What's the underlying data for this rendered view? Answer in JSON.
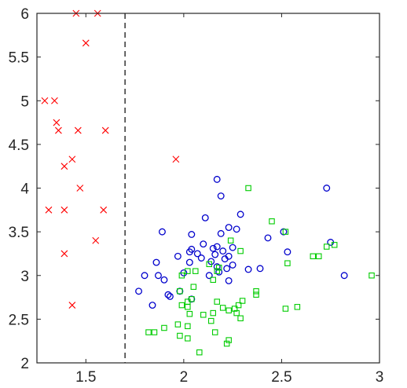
{
  "chart_data": {
    "type": "scatter",
    "xlim": [
      1.25,
      3.0
    ],
    "ylim": [
      2.0,
      6.0
    ],
    "xticks": [
      1.5,
      2,
      2.5,
      3
    ],
    "xtick_labels": [
      "1.5",
      "2",
      "2.5",
      "3"
    ],
    "yticks": [
      2,
      2.5,
      3,
      3.5,
      4,
      4.5,
      5,
      5.5,
      6
    ],
    "ytick_labels": [
      "2",
      "2.5",
      "3",
      "3.5",
      "4",
      "4.5",
      "5",
      "5.5",
      "6"
    ],
    "grid": false,
    "box": true,
    "reference_line": {
      "orientation": "vertical",
      "x": 1.7,
      "style": "dashed",
      "color": "#000000"
    },
    "series": [
      {
        "marker": "x",
        "color": "#ff0000",
        "points": [
          [
            1.45,
            6.0
          ],
          [
            1.56,
            6.0
          ],
          [
            1.5,
            5.66
          ],
          [
            1.29,
            5.0
          ],
          [
            1.34,
            5.0
          ],
          [
            1.35,
            4.75
          ],
          [
            1.36,
            4.66
          ],
          [
            1.46,
            4.66
          ],
          [
            1.6,
            4.66
          ],
          [
            1.43,
            4.33
          ],
          [
            1.39,
            4.25
          ],
          [
            1.96,
            4.33
          ],
          [
            1.47,
            4.0
          ],
          [
            1.31,
            3.75
          ],
          [
            1.39,
            3.75
          ],
          [
            1.59,
            3.75
          ],
          [
            1.55,
            3.4
          ],
          [
            1.39,
            3.25
          ],
          [
            1.43,
            2.66
          ]
        ]
      },
      {
        "marker": "o",
        "color": "#0000cc",
        "points": [
          [
            2.17,
            4.1
          ],
          [
            2.73,
            4.0
          ],
          [
            2.19,
            3.91
          ],
          [
            2.29,
            3.7
          ],
          [
            2.11,
            3.66
          ],
          [
            2.23,
            3.55
          ],
          [
            2.27,
            3.53
          ],
          [
            1.89,
            3.5
          ],
          [
            2.04,
            3.47
          ],
          [
            2.19,
            3.48
          ],
          [
            2.51,
            3.5
          ],
          [
            2.43,
            3.43
          ],
          [
            2.1,
            3.36
          ],
          [
            2.75,
            3.38
          ],
          [
            2.17,
            3.33
          ],
          [
            2.25,
            3.32
          ],
          [
            2.04,
            3.3
          ],
          [
            2.15,
            3.31
          ],
          [
            2.2,
            3.28
          ],
          [
            2.03,
            3.27
          ],
          [
            2.53,
            3.27
          ],
          [
            2.07,
            3.25
          ],
          [
            1.97,
            3.22
          ],
          [
            2.16,
            3.24
          ],
          [
            2.23,
            3.22
          ],
          [
            2.09,
            3.2
          ],
          [
            2.21,
            3.19
          ],
          [
            2.14,
            3.16
          ],
          [
            1.86,
            3.15
          ],
          [
            2.03,
            3.15
          ],
          [
            2.25,
            3.12
          ],
          [
            2.17,
            3.1
          ],
          [
            2.22,
            3.08
          ],
          [
            2.33,
            3.07
          ],
          [
            2.39,
            3.08
          ],
          [
            2.18,
            3.04
          ],
          [
            2.0,
            3.03
          ],
          [
            1.8,
            3.0
          ],
          [
            1.87,
            3.0
          ],
          [
            2.13,
            3.0
          ],
          [
            2.82,
            3.0
          ],
          [
            1.9,
            2.95
          ],
          [
            2.23,
            2.94
          ],
          [
            1.98,
            2.82
          ],
          [
            1.77,
            2.82
          ],
          [
            1.92,
            2.78
          ],
          [
            1.93,
            2.76
          ],
          [
            2.04,
            2.73
          ],
          [
            1.84,
            2.66
          ]
        ]
      },
      {
        "marker": "s",
        "color": "#00cc00",
        "points": [
          [
            2.33,
            4.0
          ],
          [
            2.45,
            3.62
          ],
          [
            2.52,
            3.5
          ],
          [
            2.24,
            3.4
          ],
          [
            2.77,
            3.35
          ],
          [
            2.73,
            3.33
          ],
          [
            2.29,
            3.28
          ],
          [
            2.66,
            3.22
          ],
          [
            2.69,
            3.22
          ],
          [
            2.13,
            3.13
          ],
          [
            2.53,
            3.14
          ],
          [
            2.02,
            3.05
          ],
          [
            2.06,
            3.05
          ],
          [
            2.17,
            3.05
          ],
          [
            2.18,
            3.09
          ],
          [
            1.99,
            3.0
          ],
          [
            2.96,
            3.0
          ],
          [
            2.15,
            2.95
          ],
          [
            2.05,
            2.87
          ],
          [
            1.98,
            2.82
          ],
          [
            2.37,
            2.82
          ],
          [
            2.37,
            2.78
          ],
          [
            2.3,
            2.71
          ],
          [
            2.02,
            2.7
          ],
          [
            2.04,
            2.73
          ],
          [
            2.17,
            2.7
          ],
          [
            2.2,
            2.63
          ],
          [
            2.02,
            2.64
          ],
          [
            1.99,
            2.66
          ],
          [
            2.28,
            2.66
          ],
          [
            2.52,
            2.62
          ],
          [
            2.58,
            2.64
          ],
          [
            2.23,
            2.6
          ],
          [
            2.26,
            2.62
          ],
          [
            2.27,
            2.57
          ],
          [
            2.15,
            2.57
          ],
          [
            2.1,
            2.55
          ],
          [
            2.03,
            2.56
          ],
          [
            2.29,
            2.51
          ],
          [
            2.14,
            2.48
          ],
          [
            1.9,
            2.4
          ],
          [
            1.97,
            2.44
          ],
          [
            2.02,
            2.42
          ],
          [
            1.82,
            2.35
          ],
          [
            1.85,
            2.35
          ],
          [
            2.16,
            2.35
          ],
          [
            1.98,
            2.31
          ],
          [
            2.02,
            2.28
          ],
          [
            2.22,
            2.22
          ],
          [
            2.23,
            2.26
          ],
          [
            2.08,
            2.12
          ]
        ]
      }
    ]
  }
}
